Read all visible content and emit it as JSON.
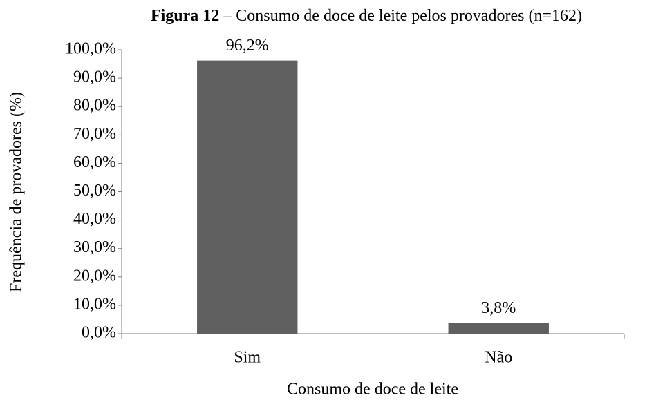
{
  "chart_data": {
    "type": "bar",
    "figure_label": "Figura 12",
    "title": "– Consumo de doce de leite pelos provadores (n=162)",
    "xlabel": "Consumo de doce de leite",
    "ylabel": "Frequência de provadores (%)",
    "categories": [
      "Sim",
      "Não"
    ],
    "values": [
      96.2,
      3.8
    ],
    "value_labels": [
      "96,2%",
      "3,8%"
    ],
    "color": "#5f5f5f",
    "ylim": [
      0,
      100
    ],
    "yticks": [
      {
        "value": 0,
        "label": "0,0%"
      },
      {
        "value": 10,
        "label": "10,0%"
      },
      {
        "value": 20,
        "label": "20,0%"
      },
      {
        "value": 30,
        "label": "30,0%"
      },
      {
        "value": 40,
        "label": "40,0%"
      },
      {
        "value": 50,
        "label": "50,0%"
      },
      {
        "value": 60,
        "label": "60,0%"
      },
      {
        "value": 70,
        "label": "70,0%"
      },
      {
        "value": 80,
        "label": "80,0%"
      },
      {
        "value": 90,
        "label": "90,0%"
      },
      {
        "value": 100,
        "label": "100,0%"
      }
    ],
    "grid": false
  }
}
